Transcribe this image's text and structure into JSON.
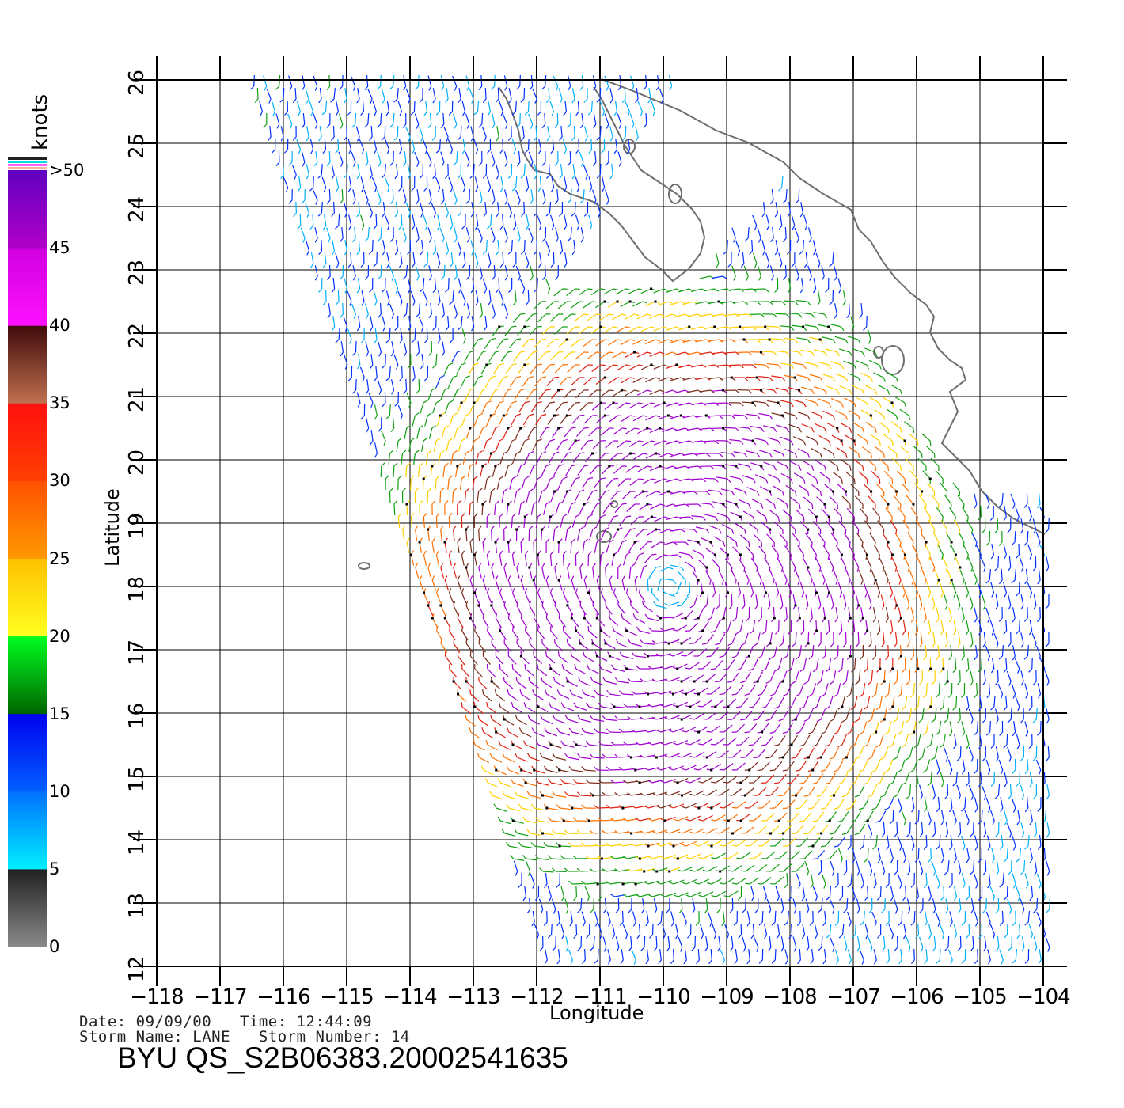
{
  "map": {
    "x_axis": {
      "title": "Longitude",
      "ticks": [
        "−118",
        "−117",
        "−116",
        "−115",
        "−114",
        "−113",
        "−112",
        "−111",
        "−110",
        "−109",
        "−108",
        "−107",
        "−106",
        "−105",
        "−104"
      ]
    },
    "y_axis": {
      "title": "Latitude",
      "ticks": [
        "12",
        "13",
        "14",
        "15",
        "16",
        "17",
        "18",
        "19",
        "20",
        "21",
        "22",
        "23",
        "24",
        "25",
        "26"
      ]
    },
    "extent": {
      "lon_min": -118,
      "lon_max": -104,
      "lat_min": 12,
      "lat_max": 26
    },
    "grid": true,
    "coast_color": "#6e6e6e"
  },
  "colorbar": {
    "unit": "knots",
    "labels": [
      ">50",
      "45",
      "40",
      "35",
      "30",
      "25",
      "20",
      "15",
      "10",
      "5",
      "0"
    ],
    "bands": [
      {
        "from": 0,
        "to": 5,
        "colors": [
          "#8a8a8a",
          "#202020"
        ]
      },
      {
        "from": 5,
        "to": 10,
        "colors": [
          "#00f0ff",
          "#0070ff"
        ]
      },
      {
        "from": 10,
        "to": 15,
        "colors": [
          "#0060ff",
          "#0000f0"
        ]
      },
      {
        "from": 15,
        "to": 20,
        "colors": [
          "#006400",
          "#00ff20"
        ]
      },
      {
        "from": 20,
        "to": 25,
        "colors": [
          "#ffff20",
          "#ffc000"
        ]
      },
      {
        "from": 25,
        "to": 30,
        "colors": [
          "#ff9a00",
          "#ff5000"
        ]
      },
      {
        "from": 30,
        "to": 35,
        "colors": [
          "#ff4000",
          "#ff1010"
        ]
      },
      {
        "from": 35,
        "to": 40,
        "colors": [
          "#c07050",
          "#400a0a"
        ]
      },
      {
        "from": 40,
        "to": 45,
        "colors": [
          "#ff10ff",
          "#d000e0"
        ]
      },
      {
        "from": 45,
        "to": 50,
        "colors": [
          "#b000c8",
          "#6000c0"
        ]
      }
    ]
  },
  "info": {
    "date_line": "Date: 09/09/00   Time: 12:44:09",
    "storm_line": "Storm Name: LANE   Storm Number: 14",
    "product": "BYU QS_S2B06383.20002541635"
  },
  "storm": {
    "name": "LANE",
    "center_lon": -109.9,
    "center_lat": 18.0
  }
}
